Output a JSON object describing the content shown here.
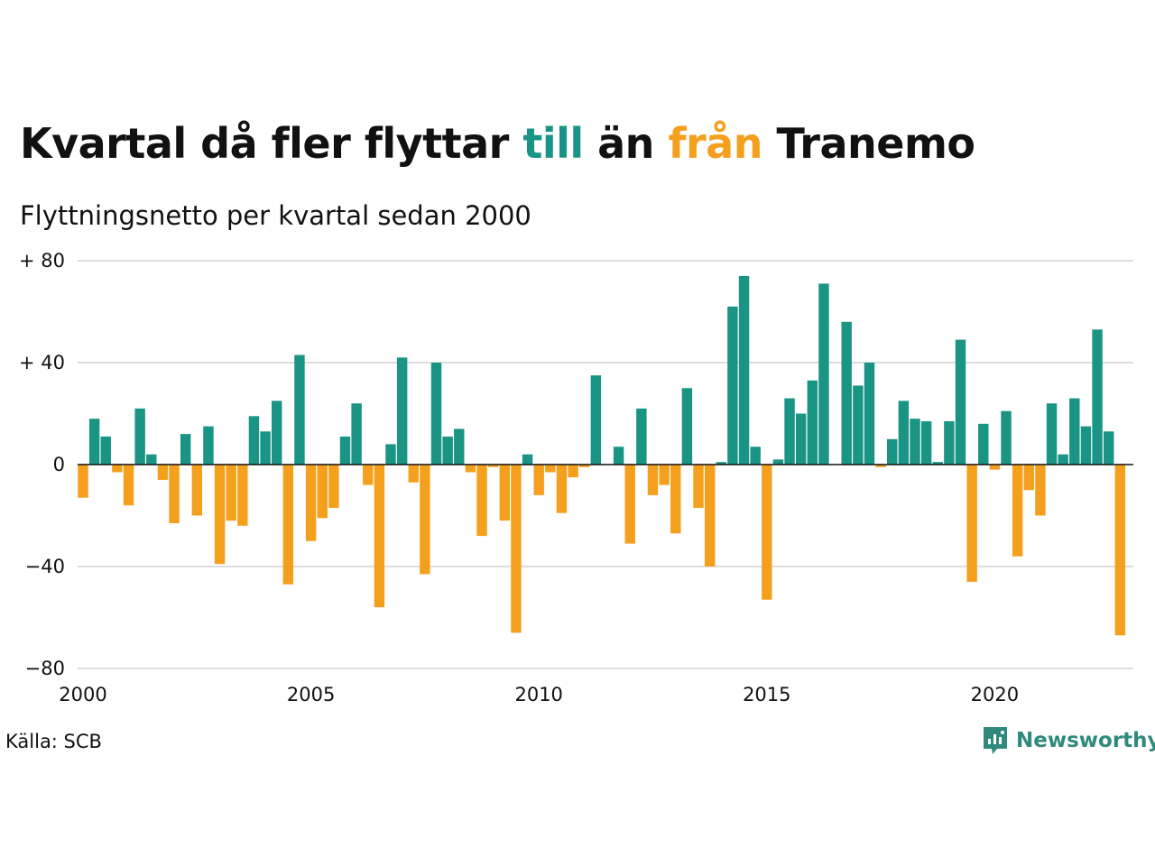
{
  "title": {
    "part1": "Kvartal då fler flyttar ",
    "word_to": "till",
    "part2": " än ",
    "word_from": "från",
    "part3": " Tranemo"
  },
  "subtitle": "Flyttningsnetto per kvartal sedan 2000",
  "source": "Källa: SCB",
  "brand": {
    "name": "Newsworthy",
    "icon": "newsworthy-logo-icon"
  },
  "colors": {
    "positive": "#1a9484",
    "negative": "#f5a01d",
    "grid": "#dddddd",
    "axis": "#111111"
  },
  "chart_data": {
    "type": "bar",
    "xlabel": "",
    "ylabel": "",
    "ylim": [
      -80,
      80
    ],
    "y_ticks": [
      80,
      40,
      0,
      -40,
      -80
    ],
    "y_tick_labels": [
      "+ 80",
      "+ 40",
      "0",
      "−40",
      "−80"
    ],
    "x_tick_labels": [
      "2000",
      "2005",
      "2010",
      "2015",
      "2020"
    ],
    "x_tick_years": [
      2000,
      2005,
      2010,
      2015,
      2020
    ],
    "start_year": 2000,
    "grid": true,
    "values": [
      -13,
      18,
      11,
      -3,
      -16,
      22,
      4,
      -6,
      -23,
      12,
      -20,
      15,
      -39,
      -22,
      -24,
      19,
      13,
      25,
      -47,
      43,
      -30,
      -21,
      -17,
      11,
      24,
      -8,
      -56,
      8,
      42,
      -7,
      -43,
      40,
      11,
      14,
      -3,
      -28,
      -1,
      -22,
      -66,
      4,
      -12,
      -3,
      -19,
      -5,
      -1,
      35,
      0,
      7,
      -31,
      22,
      -12,
      -8,
      -27,
      30,
      -17,
      -40,
      1,
      62,
      74,
      7,
      -53,
      2,
      26,
      20,
      33,
      71,
      0,
      56,
      31,
      40,
      -1,
      10,
      25,
      18,
      17,
      1,
      17,
      49,
      -46,
      16,
      -2,
      21,
      -36,
      -10,
      -20,
      24,
      4,
      26,
      15,
      53,
      13,
      -67
    ]
  }
}
